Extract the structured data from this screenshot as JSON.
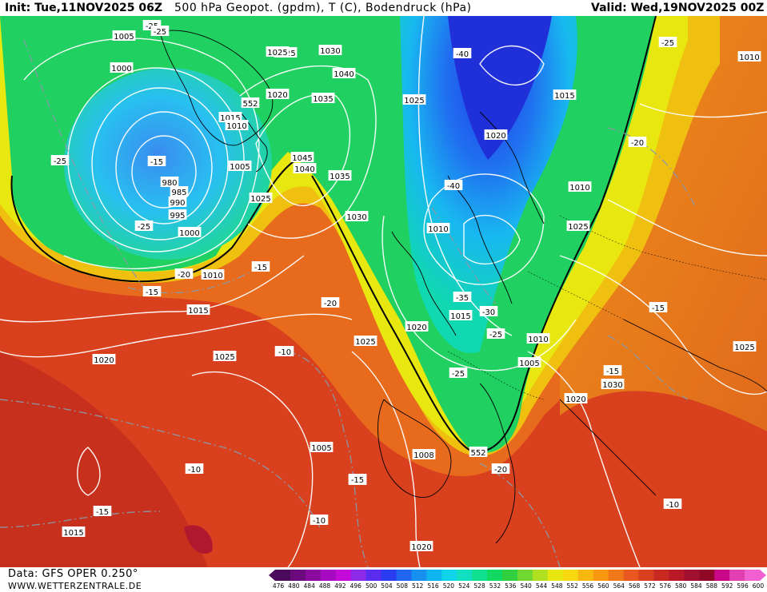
{
  "header": {
    "init": "Init: Tue,11NOV2025 06Z",
    "title": "500 hPa Geopot. (gpdm), T (C), Bodendruck (hPa)",
    "valid": "Valid: Wed,19NOV2025 00Z"
  },
  "footer": {
    "data_source": "Data: GFS OPER 0.250°",
    "website": "WWW.WETTERZENTRALE.DE"
  },
  "legend": {
    "ticks": [
      "476",
      "480",
      "484",
      "488",
      "492",
      "496",
      "500",
      "504",
      "508",
      "512",
      "516",
      "520",
      "524",
      "528",
      "532",
      "536",
      "540",
      "544",
      "548",
      "552",
      "556",
      "560",
      "564",
      "568",
      "572",
      "576",
      "580",
      "584",
      "588",
      "592",
      "596",
      "600"
    ],
    "colors": [
      "#4b0a5a",
      "#6a0a7c",
      "#8a0a9e",
      "#a60ac0",
      "#c40ad8",
      "#8c2be8",
      "#5a2cf0",
      "#2a3cf0",
      "#2066f0",
      "#1890f0",
      "#10b4f0",
      "#10d4e8",
      "#10e0c0",
      "#10e090",
      "#10d860",
      "#30d040",
      "#70d830",
      "#b0e020",
      "#e8e810",
      "#f8d810",
      "#f8b810",
      "#f89810",
      "#f07818",
      "#e85820",
      "#d84020",
      "#c82820",
      "#b81828",
      "#a01030",
      "#900828",
      "#c80a8a",
      "#e040b0",
      "#f060d0"
    ]
  },
  "map": {
    "pressure_labels": [
      "1005",
      "1000",
      "1025",
      "1030",
      "1020",
      "1040",
      "1035",
      "1015",
      "1010",
      "1045",
      "1040",
      "1035",
      "1005",
      "980",
      "985",
      "990",
      "995",
      "1000",
      "1025",
      "1030",
      "1010",
      "1015",
      "1025",
      "1020",
      "1025",
      "1025",
      "1020",
      "1015",
      "1005",
      "1010",
      "1025",
      "1020",
      "1015",
      "1010",
      "1010",
      "1008",
      "1005",
      "1010",
      "1030",
      "1020",
      "1025",
      "1020",
      "1015",
      "1025"
    ],
    "temp_labels": [
      "-25",
      "-25",
      "-25",
      "-25",
      "-15",
      "-20",
      "-15",
      "-15",
      "-20",
      "-15",
      "-40",
      "-40",
      "-35",
      "-30",
      "-25",
      "-25",
      "-20",
      "-20",
      "-25",
      "-15",
      "-15",
      "-20",
      "-10",
      "-15",
      "-10",
      "-10",
      "-10",
      "-15"
    ],
    "height_labels": [
      "552",
      "552"
    ]
  }
}
